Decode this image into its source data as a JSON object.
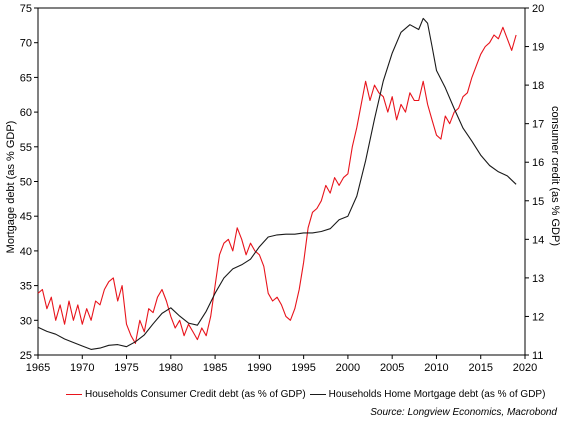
{
  "chart_data": {
    "type": "line",
    "title": "",
    "xlabel": "",
    "ylabel_left": "Mortgage debt (as % GDP)",
    "ylabel_right": "consumer credit (as % GDP)",
    "xlim": [
      1965,
      2020
    ],
    "ylim_left": [
      25,
      75
    ],
    "ylim_right": [
      11,
      20
    ],
    "x_ticks": [
      1965,
      1970,
      1975,
      1980,
      1985,
      1990,
      1995,
      2000,
      2005,
      2010,
      2015,
      2020
    ],
    "y_left_ticks": [
      25,
      30,
      35,
      40,
      45,
      50,
      55,
      60,
      65,
      70,
      75
    ],
    "y_right_ticks": [
      11,
      12,
      13,
      14,
      15,
      16,
      17,
      18,
      19,
      20
    ],
    "grid": false,
    "legend_placement": "bottom",
    "series": [
      {
        "name": "Households Consumer Credit debt (as % of GDP)",
        "axis": "right",
        "color": "#e8141c",
        "x": [
          1965.0,
          1965.5,
          1966.0,
          1966.5,
          1967.0,
          1967.5,
          1968.0,
          1968.5,
          1969.0,
          1969.5,
          1970.0,
          1970.5,
          1971.0,
          1971.5,
          1972.0,
          1972.5,
          1973.0,
          1973.5,
          1974.0,
          1974.5,
          1975.0,
          1975.5,
          1976.0,
          1976.5,
          1977.0,
          1977.5,
          1978.0,
          1978.5,
          1979.0,
          1979.5,
          1980.0,
          1980.5,
          1981.0,
          1981.5,
          1982.0,
          1982.5,
          1983.0,
          1983.5,
          1984.0,
          1984.5,
          1985.0,
          1985.5,
          1986.0,
          1986.5,
          1987.0,
          1987.5,
          1988.0,
          1988.5,
          1989.0,
          1989.5,
          1990.0,
          1990.5,
          1991.0,
          1991.5,
          1992.0,
          1992.5,
          1993.0,
          1993.5,
          1994.0,
          1994.5,
          1995.0,
          1995.5,
          1996.0,
          1996.5,
          1997.0,
          1997.5,
          1998.0,
          1998.5,
          1999.0,
          1999.5,
          2000.0,
          2000.5,
          2001.0,
          2001.5,
          2002.0,
          2002.5,
          2003.0,
          2003.5,
          2004.0,
          2004.5,
          2005.0,
          2005.5,
          2006.0,
          2006.5,
          2007.0,
          2007.5,
          2008.0,
          2008.5,
          2009.0,
          2009.5,
          2010.0,
          2010.5,
          2011.0,
          2011.5,
          2012.0,
          2012.5,
          2013.0,
          2013.5,
          2014.0,
          2014.5,
          2015.0,
          2015.5,
          2016.0,
          2016.5,
          2017.0,
          2017.5,
          2018.0,
          2018.5,
          2019.0
        ],
        "values": [
          12.6,
          12.7,
          12.2,
          12.5,
          11.9,
          12.3,
          11.8,
          12.4,
          11.9,
          12.3,
          11.8,
          12.2,
          11.9,
          12.4,
          12.3,
          12.7,
          12.9,
          13.0,
          12.4,
          12.8,
          11.8,
          11.5,
          11.3,
          11.9,
          11.6,
          12.2,
          12.1,
          12.5,
          12.7,
          12.4,
          12.0,
          11.7,
          11.9,
          11.5,
          11.8,
          11.6,
          11.4,
          11.7,
          11.5,
          12.0,
          12.8,
          13.6,
          13.9,
          14.0,
          13.7,
          14.3,
          14.0,
          13.6,
          13.9,
          13.7,
          13.6,
          13.3,
          12.6,
          12.4,
          12.5,
          12.3,
          12.0,
          11.9,
          12.2,
          12.7,
          13.4,
          14.3,
          14.7,
          14.8,
          15.0,
          15.4,
          15.2,
          15.6,
          15.4,
          15.6,
          15.7,
          16.4,
          16.9,
          17.5,
          18.1,
          17.6,
          18.0,
          17.8,
          17.7,
          17.3,
          17.7,
          17.1,
          17.5,
          17.3,
          17.8,
          17.6,
          17.6,
          18.1,
          17.5,
          17.1,
          16.7,
          16.6,
          17.2,
          17.0,
          17.3,
          17.4,
          17.7,
          17.8,
          18.2,
          18.5,
          18.8,
          19.0,
          19.1,
          19.3,
          19.2,
          19.5,
          19.2,
          18.9,
          19.3
        ]
      },
      {
        "name": "Households Home Mortgage debt (as % of GDP)",
        "axis": "left",
        "color": "#1a1a1a",
        "x": [
          1965.0,
          1966.0,
          1967.0,
          1968.0,
          1969.0,
          1970.0,
          1971.0,
          1972.0,
          1973.0,
          1974.0,
          1975.0,
          1976.0,
          1977.0,
          1978.0,
          1979.0,
          1980.0,
          1981.0,
          1982.0,
          1983.0,
          1984.0,
          1985.0,
          1986.0,
          1987.0,
          1988.0,
          1989.0,
          1990.0,
          1991.0,
          1992.0,
          1993.0,
          1994.0,
          1995.0,
          1996.0,
          1997.0,
          1998.0,
          1999.0,
          2000.0,
          2001.0,
          2002.0,
          2003.0,
          2004.0,
          2005.0,
          2006.0,
          2007.0,
          2008.0,
          2008.5,
          2009.0,
          2009.5,
          2010.0,
          2011.0,
          2012.0,
          2013.0,
          2014.0,
          2015.0,
          2016.0,
          2017.0,
          2018.0,
          2019.0
        ],
        "values": [
          29.0,
          28.4,
          28.0,
          27.3,
          26.8,
          26.3,
          25.8,
          26.0,
          26.4,
          26.5,
          26.2,
          26.9,
          27.9,
          29.5,
          31.0,
          31.8,
          30.6,
          29.6,
          29.3,
          31.3,
          33.9,
          36.1,
          37.4,
          38.0,
          38.8,
          40.6,
          42.0,
          42.3,
          42.4,
          42.4,
          42.6,
          42.6,
          42.8,
          43.2,
          44.5,
          45.0,
          47.9,
          53.0,
          59.0,
          64.5,
          68.5,
          71.5,
          72.6,
          71.9,
          73.5,
          72.8,
          69.5,
          66.0,
          63.5,
          60.5,
          57.7,
          55.8,
          53.8,
          52.3,
          51.4,
          50.8,
          49.6
        ]
      }
    ]
  },
  "legend": {
    "consumer_label": "Households Consumer Credit debt (as % of GDP)",
    "mortgage_label": "Households Home Mortgage debt (as % of GDP)"
  },
  "source": "Source: Longview Economics, Macrobond"
}
